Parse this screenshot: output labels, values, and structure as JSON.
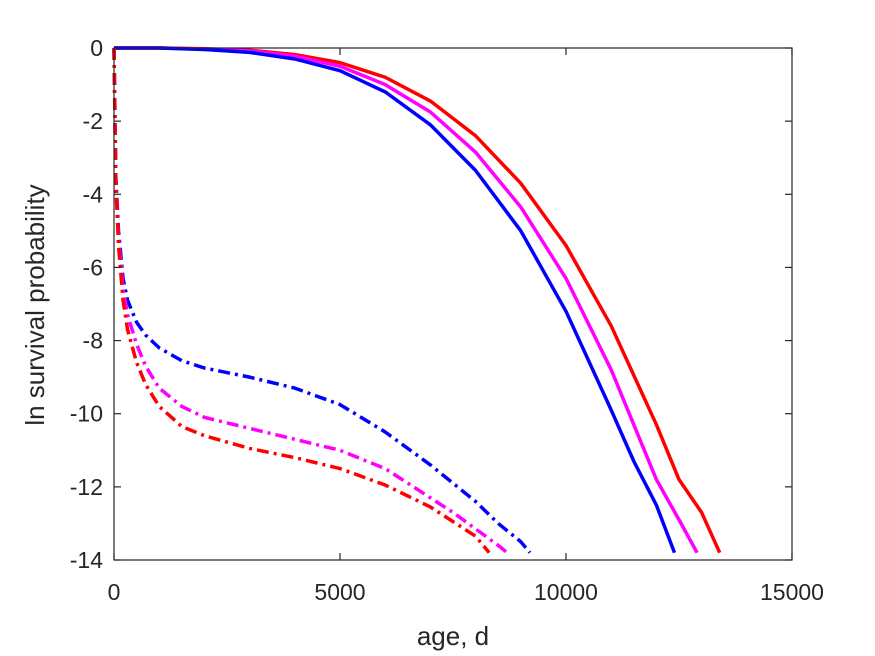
{
  "chart_data": {
    "type": "line",
    "xlabel": "age, d",
    "ylabel": "ln survival probability",
    "xlim": [
      0,
      15000
    ],
    "ylim": [
      -14,
      0
    ],
    "xticks": [
      0,
      5000,
      10000,
      15000
    ],
    "xtick_labels": [
      "0",
      "5000",
      "10000",
      "15000"
    ],
    "yticks": [
      0,
      -2,
      -4,
      -6,
      -8,
      -10,
      -12,
      -14
    ],
    "ytick_labels": [
      "0",
      "-2",
      "-4",
      "-6",
      "-8",
      "-10",
      "-12",
      "-14"
    ],
    "grid": false,
    "legend": "none",
    "series": [
      {
        "color": "#ff0000",
        "style": "solid",
        "x": [
          0,
          1000,
          2000,
          3000,
          4000,
          5000,
          6000,
          7000,
          8000,
          9000,
          10000,
          11000,
          12000,
          12500,
          13000,
          13400
        ],
        "y": [
          0,
          0,
          -0.02,
          -0.06,
          -0.18,
          -0.4,
          -0.8,
          -1.45,
          -2.4,
          -3.7,
          -5.4,
          -7.6,
          -10.3,
          -11.8,
          -12.7,
          -13.8
        ]
      },
      {
        "color": "#ff00ff",
        "style": "solid",
        "x": [
          0,
          1000,
          2000,
          3000,
          4000,
          5000,
          6000,
          7000,
          8000,
          9000,
          10000,
          11000,
          12000,
          12500,
          12900
        ],
        "y": [
          0,
          0,
          -0.03,
          -0.08,
          -0.22,
          -0.5,
          -1.0,
          -1.75,
          -2.85,
          -4.35,
          -6.3,
          -8.8,
          -11.8,
          -12.9,
          -13.8
        ]
      },
      {
        "color": "#0000ff",
        "style": "solid",
        "x": [
          0,
          1000,
          2000,
          3000,
          4000,
          5000,
          6000,
          7000,
          8000,
          9000,
          10000,
          11000,
          11500,
          12000,
          12400
        ],
        "y": [
          0,
          0,
          -0.04,
          -0.12,
          -0.3,
          -0.62,
          -1.2,
          -2.1,
          -3.35,
          -5.0,
          -7.2,
          -9.9,
          -11.3,
          -12.5,
          -13.8
        ]
      },
      {
        "color": "#0000ff",
        "style": "dashdot",
        "x": [
          0,
          40,
          100,
          200,
          300,
          500,
          700,
          1000,
          1500,
          2000,
          3000,
          4000,
          5000,
          6000,
          7000,
          8000,
          8500,
          9000,
          9200
        ],
        "y": [
          0,
          -3.5,
          -5.0,
          -6.3,
          -6.9,
          -7.5,
          -7.85,
          -8.2,
          -8.55,
          -8.75,
          -9.0,
          -9.3,
          -9.75,
          -10.5,
          -11.4,
          -12.4,
          -13.0,
          -13.5,
          -13.8
        ]
      },
      {
        "color": "#ff00ff",
        "style": "dashdot",
        "x": [
          0,
          40,
          100,
          200,
          300,
          500,
          700,
          1000,
          1500,
          2000,
          3000,
          4000,
          5000,
          6000,
          7000,
          7500,
          8000,
          8500,
          8700
        ],
        "y": [
          0,
          -3.6,
          -5.2,
          -6.6,
          -7.3,
          -8.1,
          -8.7,
          -9.3,
          -9.8,
          -10.1,
          -10.4,
          -10.7,
          -11.0,
          -11.5,
          -12.3,
          -12.7,
          -13.15,
          -13.6,
          -13.8
        ]
      },
      {
        "color": "#ff0000",
        "style": "dashdot",
        "x": [
          0,
          40,
          100,
          200,
          300,
          500,
          700,
          1000,
          1500,
          2000,
          3000,
          4000,
          5000,
          6000,
          7000,
          7500,
          8000,
          8300
        ],
        "y": [
          0,
          -3.7,
          -5.4,
          -6.9,
          -7.7,
          -8.6,
          -9.2,
          -9.8,
          -10.35,
          -10.6,
          -10.95,
          -11.2,
          -11.5,
          -11.95,
          -12.55,
          -12.95,
          -13.35,
          -13.8
        ]
      }
    ]
  }
}
